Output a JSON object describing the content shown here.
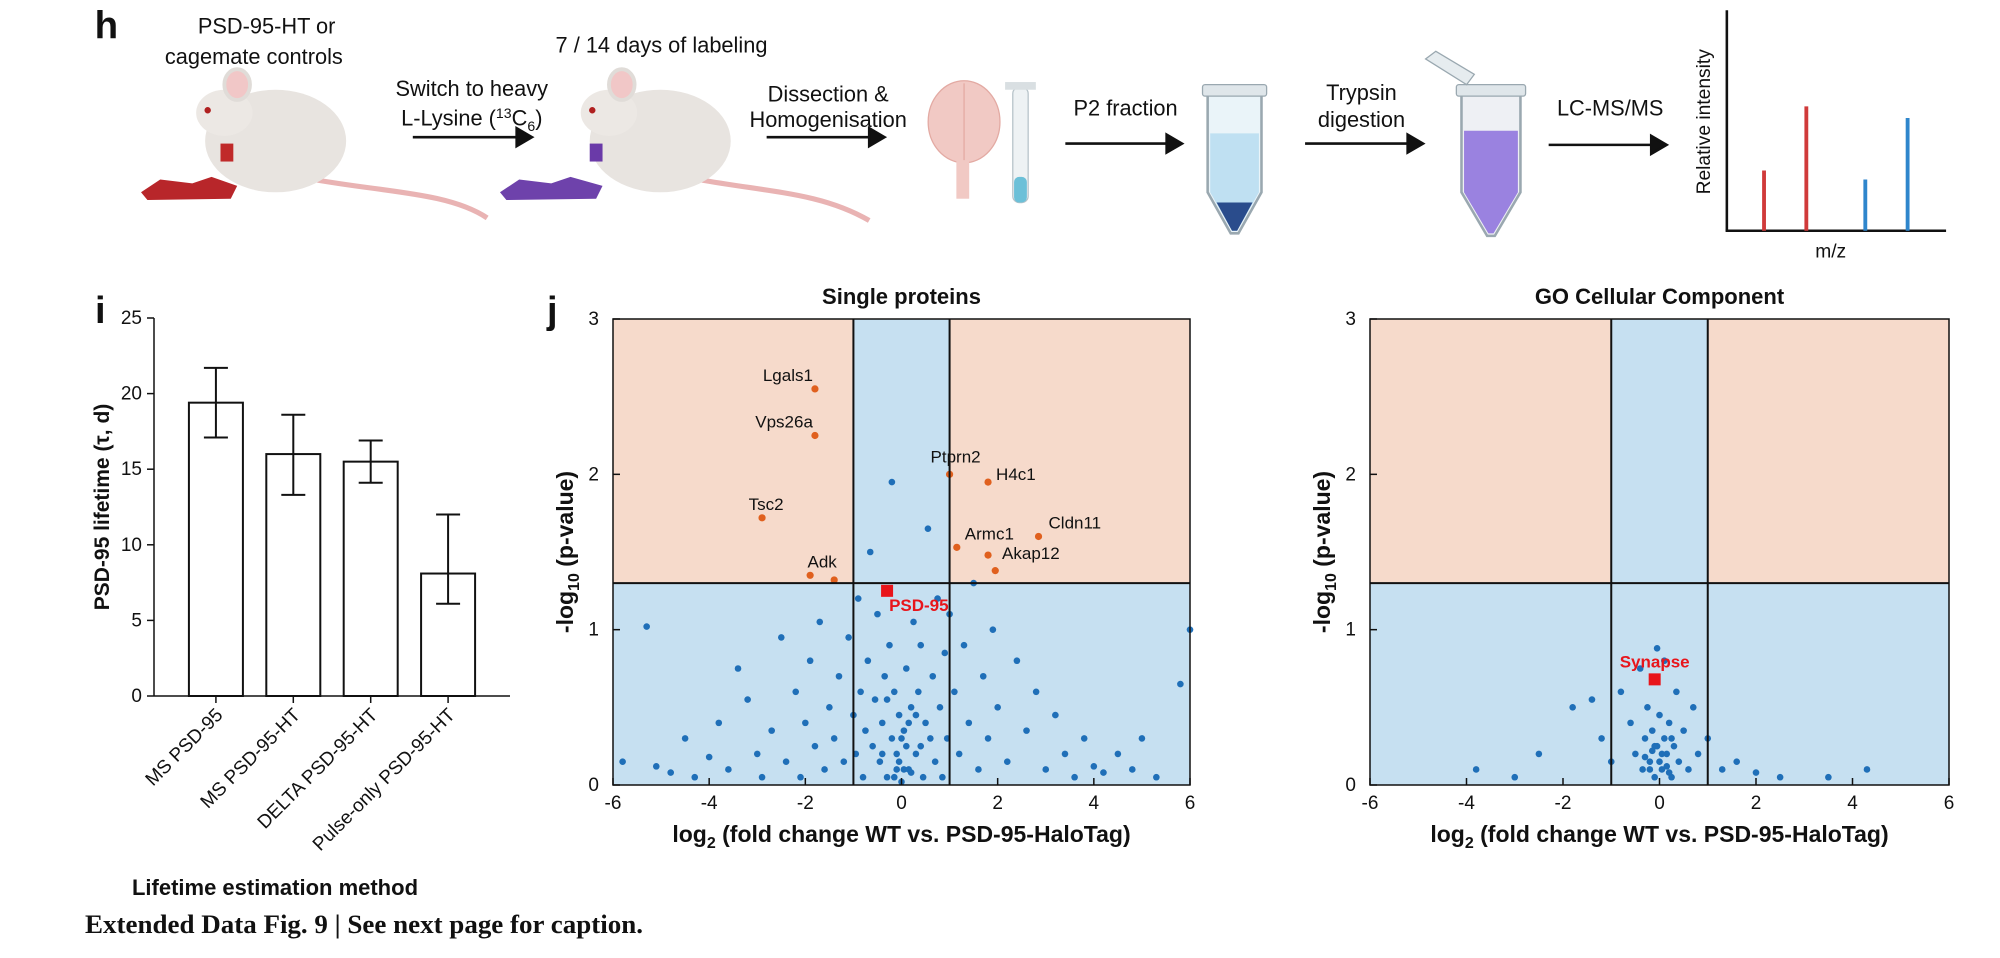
{
  "panel_labels": [
    "h",
    "i",
    "j"
  ],
  "workflow": {
    "cohort": [
      "PSD-95-HT or",
      "cagemate controls"
    ],
    "switch": {
      "line1": "Switch to heavy",
      "pre": "L-Lysine (",
      "sup": "13",
      "base": "C",
      "sub": "6",
      "post": ")"
    },
    "labeling": "7 / 14 days of labeling",
    "dissection": [
      "Dissection &",
      "Homogenisation"
    ],
    "fraction": "P2 fraction",
    "digestion": [
      "Trypsin",
      "digestion"
    ],
    "ms": "LC-MS/MS",
    "spectrum_ylabel": "Relative intensity",
    "spectrum_xlabel": "m/z"
  },
  "chart_data": [
    {
      "type": "bar",
      "ylabel": "PSD-95 lifetime (τ, d)",
      "xlabel": "Lifetime estimation method",
      "categories": [
        "MS PSD-95",
        "MS PSD-95-HT",
        "DELTA PSD-95-HT",
        "Pulse-only PSD-95-HT"
      ],
      "values": [
        19.4,
        16.0,
        15.5,
        8.1
      ],
      "error_lower": [
        17.1,
        13.3,
        14.1,
        6.1
      ],
      "error_upper": [
        21.7,
        18.6,
        16.9,
        12.0
      ],
      "color": "#ffffff",
      "ylim": [
        0,
        25
      ],
      "yticks": [
        0,
        5,
        10,
        15,
        20,
        25
      ]
    },
    {
      "type": "scatter",
      "title": "Single proteins",
      "xlabel": {
        "pre": "log",
        "sub": "2",
        "post": " (fold change WT vs. PSD-95-HaloTag)"
      },
      "ylabel": {
        "pre": "-log",
        "sub": "10",
        "post": " (p-value)"
      },
      "xlim": [
        -6,
        6
      ],
      "ylim": [
        0,
        3
      ],
      "xticks": [
        -6,
        -4,
        -2,
        0,
        2,
        4,
        6
      ],
      "yticks": [
        0,
        1,
        2,
        3
      ],
      "fold_change_cutoffs": [
        -1,
        1
      ],
      "p_cutoff": 1.3,
      "region_colors": {
        "significant": "#f6dacb",
        "other": "#c6e0f1"
      },
      "series": [
        {
          "color": "#1f6fb8",
          "x": [
            -5.8,
            -5.3,
            -5.1,
            -4.8,
            -4.5,
            -4.3,
            -4.0,
            -3.8,
            -3.6,
            -3.4,
            -3.2,
            -3.0,
            -2.9,
            -2.7,
            -2.5,
            -2.4,
            -2.2,
            -2.1,
            -2.0,
            -1.9,
            -1.8,
            -1.7,
            -1.6,
            -1.5,
            -1.4,
            -1.3,
            -1.2,
            -1.1,
            -1.0,
            -0.95,
            -0.9,
            -0.85,
            -0.8,
            -0.75,
            -0.7,
            -0.65,
            -0.6,
            -0.55,
            -0.5,
            -0.45,
            -0.4,
            -0.35,
            -0.3,
            -0.25,
            -0.2,
            -0.15,
            -0.1,
            -0.05,
            0,
            0.05,
            0.1,
            0.15,
            0.2,
            0.25,
            0.3,
            0.35,
            0.4,
            0.45,
            0.5,
            0.55,
            0.6,
            0.65,
            0.7,
            0.75,
            0.8,
            0.85,
            0.9,
            0.95,
            1.0,
            1.1,
            1.2,
            1.3,
            1.4,
            1.5,
            1.6,
            1.7,
            1.8,
            1.9,
            2.0,
            2.2,
            2.4,
            2.6,
            2.8,
            3.0,
            3.2,
            3.4,
            3.6,
            3.8,
            4.0,
            4.2,
            4.5,
            4.8,
            5.0,
            5.3,
            5.8,
            6.0,
            -0.2,
            -0.1,
            0.1,
            -0.05,
            0.05,
            0.0,
            -0.15,
            0.15,
            0.2,
            -0.3,
            0.3,
            -0.4,
            0.4
          ],
          "y": [
            0.15,
            1.02,
            0.12,
            0.08,
            0.3,
            0.05,
            0.18,
            0.4,
            0.1,
            0.75,
            0.55,
            0.2,
            0.05,
            0.35,
            0.95,
            0.15,
            0.6,
            0.05,
            0.4,
            0.8,
            0.25,
            1.05,
            0.1,
            0.5,
            0.3,
            0.7,
            0.15,
            0.95,
            0.45,
            0.2,
            1.2,
            0.6,
            0.05,
            0.35,
            0.8,
            1.5,
            0.25,
            0.55,
            1.1,
            0.15,
            0.4,
            0.7,
            0.05,
            0.9,
            0.3,
            0.6,
            0.1,
            0.45,
            0.02,
            0.35,
            0.75,
            0.1,
            0.5,
            1.05,
            0.2,
            0.6,
            0.9,
            0.05,
            0.4,
            1.65,
            0.3,
            0.7,
            0.15,
            1.2,
            0.5,
            0.05,
            0.85,
            0.3,
            1.1,
            0.6,
            0.2,
            0.9,
            0.4,
            1.3,
            0.1,
            0.7,
            0.3,
            1.0,
            0.5,
            0.15,
            0.8,
            0.35,
            0.6,
            0.1,
            0.45,
            0.2,
            0.05,
            0.3,
            0.12,
            0.08,
            0.2,
            0.1,
            0.3,
            0.05,
            0.65,
            1.0,
            1.95,
            0.2,
            0.25,
            0.15,
            0.1,
            0.3,
            0.05,
            0.4,
            0.08,
            0.55,
            0.45,
            0.2,
            0.25
          ]
        },
        {
          "color": "#e0601e",
          "x": [
            -1.8,
            -1.8,
            -2.9,
            -1.9,
            -1.4,
            1.0,
            1.8,
            1.15,
            2.85,
            1.8,
            1.95
          ],
          "y": [
            2.55,
            2.25,
            1.72,
            1.35,
            1.32,
            2.0,
            1.95,
            1.53,
            1.6,
            1.48,
            1.38
          ],
          "labels": [
            "Lgals1",
            "Vps26a",
            "Tsc2",
            "Adk",
            null,
            "Ptprn2",
            "H4c1",
            "Armc1",
            "Cldn11",
            "Akap12",
            null
          ]
        }
      ],
      "highlight": {
        "label": "PSD-95",
        "x": -0.3,
        "y": 1.25,
        "color": "#e8151b"
      }
    },
    {
      "type": "scatter",
      "title": "GO Cellular Component",
      "xlabel": {
        "pre": "log",
        "sub": "2",
        "post": " (fold change WT vs. PSD-95-HaloTag)"
      },
      "ylabel": {
        "pre": "-log",
        "sub": "10",
        "post": " (p-value)"
      },
      "xlim": [
        -6,
        6
      ],
      "ylim": [
        0,
        3
      ],
      "xticks": [
        -6,
        -4,
        -2,
        0,
        2,
        4,
        6
      ],
      "yticks": [
        0,
        1,
        2,
        3
      ],
      "fold_change_cutoffs": [
        -1,
        1
      ],
      "p_cutoff": 1.3,
      "region_colors": {
        "significant": "#f6dacb",
        "other": "#c6e0f1"
      },
      "series": [
        {
          "color": "#1f6fb8",
          "x": [
            -3.8,
            -3.0,
            -2.5,
            -1.8,
            -1.4,
            -1.2,
            -1.0,
            -0.8,
            -0.6,
            -0.5,
            -0.4,
            -0.35,
            -0.3,
            -0.25,
            -0.2,
            -0.15,
            -0.1,
            -0.05,
            0,
            0.05,
            0.1,
            0.15,
            0.2,
            0.25,
            0.3,
            0.35,
            0.4,
            0.5,
            0.6,
            0.7,
            0.8,
            1.0,
            1.3,
            1.6,
            2.0,
            2.5,
            3.5,
            4.3,
            -0.05,
            0.1,
            -0.2,
            0.0,
            0.05,
            -0.1,
            0.15,
            -0.3,
            0.25,
            -0.15,
            0.2
          ],
          "y": [
            0.1,
            0.05,
            0.2,
            0.5,
            0.55,
            0.3,
            0.15,
            0.6,
            0.4,
            0.2,
            0.75,
            0.1,
            0.3,
            0.5,
            0.15,
            0.35,
            0.05,
            0.25,
            0.45,
            0.1,
            0.3,
            0.2,
            0.4,
            0.05,
            0.25,
            0.6,
            0.15,
            0.35,
            0.1,
            0.5,
            0.2,
            0.3,
            0.1,
            0.15,
            0.08,
            0.05,
            0.05,
            0.1,
            0.88,
            0.8,
            0.1,
            0.15,
            0.2,
            0.25,
            0.12,
            0.18,
            0.3,
            0.22,
            0.08
          ]
        }
      ],
      "highlight": {
        "label": "Synapse",
        "x": -0.1,
        "y": 0.68,
        "color": "#e8151b"
      }
    }
  ],
  "caption": "Extended Data Fig. 9 | See next page for caption."
}
